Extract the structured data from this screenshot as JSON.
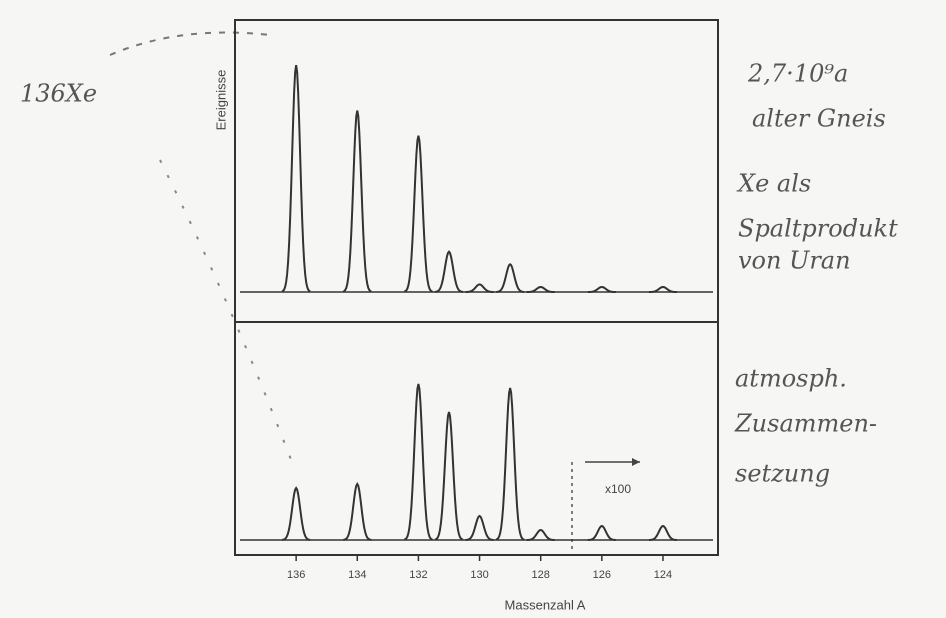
{
  "chart_data": [
    {
      "type": "spectrum",
      "y_label": "Ereignisse",
      "x": [
        136,
        134,
        132,
        131,
        130,
        129,
        128,
        126,
        124
      ],
      "values": [
        90,
        72,
        62,
        16,
        3,
        11,
        2,
        2,
        2
      ],
      "xlim": [
        138,
        122.2
      ],
      "ylim": [
        0,
        100
      ],
      "color": "#333333",
      "annotations": [
        "136Xe",
        "2,7·10⁹a",
        "alter Gneis",
        "Xe als",
        "Spaltprodukt",
        "von Uran"
      ]
    },
    {
      "type": "spectrum",
      "x_label": "Massenzahl A",
      "x": [
        136,
        134,
        132,
        131,
        130,
        129,
        128,
        126,
        124
      ],
      "values": [
        26,
        28,
        78,
        64,
        12,
        76,
        5,
        7,
        7
      ],
      "xlim": [
        138,
        122.2
      ],
      "ylim": [
        0,
        100
      ],
      "color": "#333333",
      "xticks": [
        136,
        134,
        132,
        130,
        128,
        126,
        124
      ],
      "inset_label": "x100",
      "annotations": [
        "atmosph.",
        "Zusammen-",
        "setzung"
      ]
    }
  ]
}
